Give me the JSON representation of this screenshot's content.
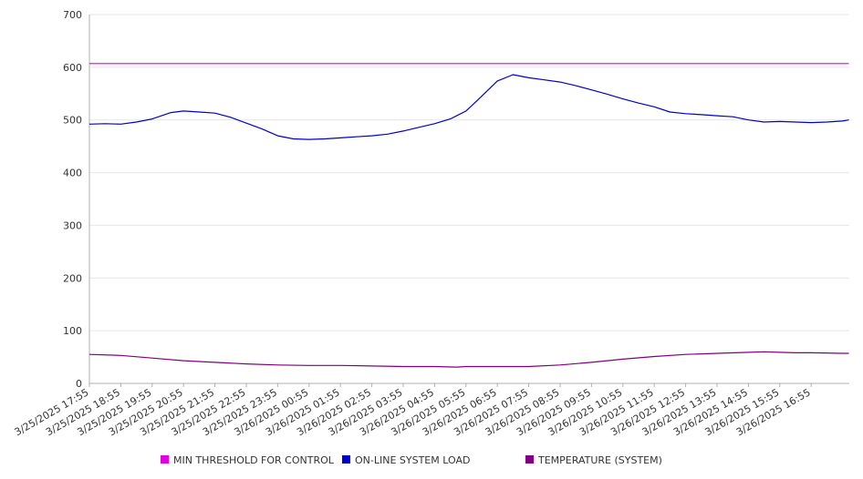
{
  "chart_data": {
    "type": "line",
    "title": "",
    "xlabel": "",
    "ylabel": "",
    "ylim": [
      0,
      700
    ],
    "yticks": [
      0,
      100,
      200,
      300,
      400,
      500,
      600,
      700
    ],
    "grid": true,
    "legend_position": "bottom",
    "categories": [
      "3/25/2025 17:55",
      "3/25/2025 18:55",
      "3/25/2025 19:55",
      "3/25/2025 20:55",
      "3/25/2025 21:55",
      "3/25/2025 22:55",
      "3/25/2025 23:55",
      "3/26/2025 00:55",
      "3/26/2025 01:55",
      "3/26/2025 02:55",
      "3/26/2025 03:55",
      "3/26/2025 04:55",
      "3/26/2025 05:55",
      "3/26/2025 06:55",
      "3/26/2025 07:55",
      "3/26/2025 08:55",
      "3/26/2025 09:55",
      "3/26/2025 10:55",
      "3/26/2025 11:55",
      "3/26/2025 12:55",
      "3/26/2025 13:55",
      "3/26/2025 14:55",
      "3/26/2025 15:55",
      "3/26/2025 16:55"
    ],
    "series": [
      {
        "name": "MIN THRESHOLD FOR CONTROL",
        "color": "#e000e0",
        "points": [
          [
            0,
            607
          ],
          [
            24.2,
            607
          ]
        ]
      },
      {
        "name": "ON-LINE SYSTEM LOAD",
        "color": "#0000cc",
        "points": [
          [
            0,
            492
          ],
          [
            0.5,
            493
          ],
          [
            1,
            492
          ],
          [
            1.5,
            496
          ],
          [
            2,
            502
          ],
          [
            2.3,
            508
          ],
          [
            2.6,
            514
          ],
          [
            3,
            517
          ],
          [
            3.5,
            515
          ],
          [
            4,
            513
          ],
          [
            4.5,
            505
          ],
          [
            5,
            494
          ],
          [
            5.5,
            483
          ],
          [
            6,
            470
          ],
          [
            6.5,
            464
          ],
          [
            7,
            463
          ],
          [
            7.5,
            464
          ],
          [
            8,
            466
          ],
          [
            8.5,
            468
          ],
          [
            9,
            470
          ],
          [
            9.5,
            473
          ],
          [
            10,
            479
          ],
          [
            10.5,
            486
          ],
          [
            11,
            493
          ],
          [
            11.5,
            502
          ],
          [
            12,
            517
          ],
          [
            12.5,
            545
          ],
          [
            13,
            574
          ],
          [
            13.5,
            586
          ],
          [
            14,
            580
          ],
          [
            14.5,
            576
          ],
          [
            15,
            572
          ],
          [
            15.5,
            565
          ],
          [
            16,
            557
          ],
          [
            16.5,
            549
          ],
          [
            17,
            540
          ],
          [
            17.5,
            532
          ],
          [
            18,
            525
          ],
          [
            18.5,
            515
          ],
          [
            19,
            512
          ],
          [
            19.5,
            510
          ],
          [
            20,
            508
          ],
          [
            20.5,
            506
          ],
          [
            21,
            500
          ],
          [
            21.5,
            496
          ],
          [
            22,
            497
          ],
          [
            22.5,
            496
          ],
          [
            23,
            495
          ],
          [
            23.5,
            496
          ],
          [
            24,
            498
          ],
          [
            24.2,
            500
          ]
        ]
      },
      {
        "name": "TEMPERATURE (SYSTEM)",
        "color": "#800080",
        "points": [
          [
            0,
            55
          ],
          [
            1,
            53
          ],
          [
            2,
            48
          ],
          [
            3,
            43
          ],
          [
            4,
            40
          ],
          [
            5,
            37
          ],
          [
            6,
            35
          ],
          [
            7,
            34
          ],
          [
            8,
            34
          ],
          [
            9,
            33
          ],
          [
            10,
            32
          ],
          [
            11,
            32
          ],
          [
            11.7,
            31
          ],
          [
            12,
            32
          ],
          [
            13,
            32
          ],
          [
            14,
            32
          ],
          [
            15,
            35
          ],
          [
            16,
            40
          ],
          [
            17,
            46
          ],
          [
            18,
            51
          ],
          [
            19,
            55
          ],
          [
            20,
            57
          ],
          [
            21,
            59
          ],
          [
            21.5,
            60
          ],
          [
            22,
            59
          ],
          [
            22.5,
            58
          ],
          [
            23,
            58
          ],
          [
            24,
            57
          ],
          [
            24.2,
            57
          ]
        ]
      }
    ]
  }
}
